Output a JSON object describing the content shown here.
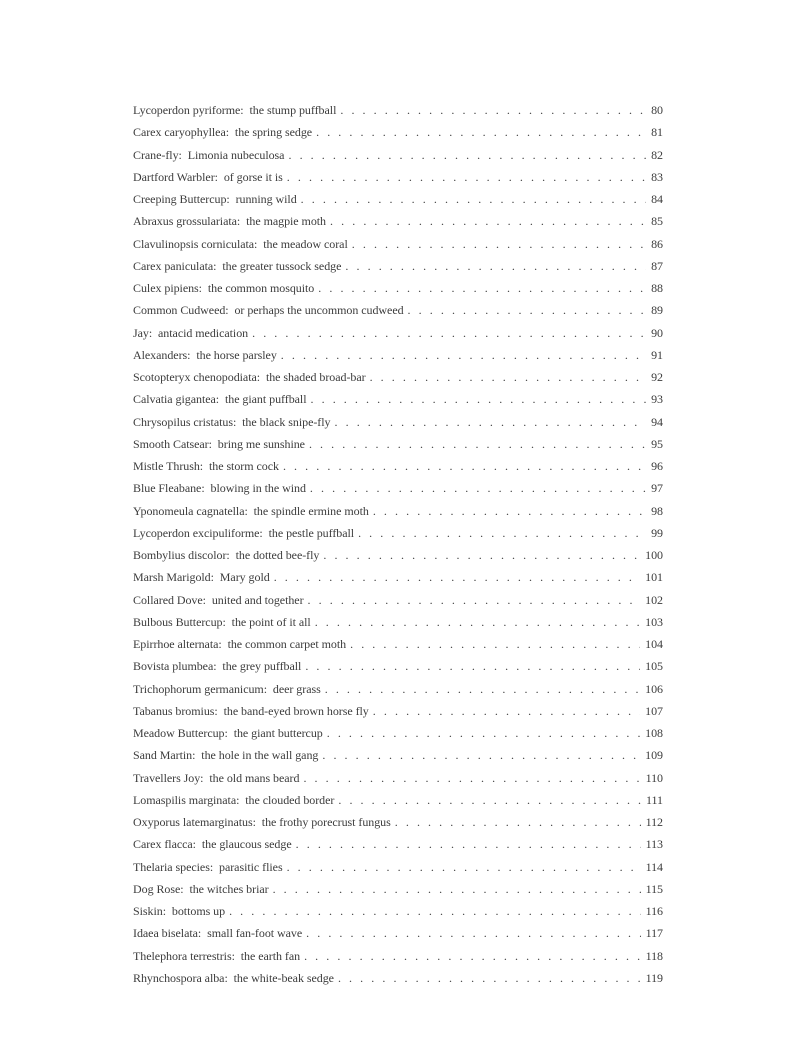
{
  "page": {
    "background": "#ffffff",
    "text_color": "#3c3c3c"
  },
  "toc": {
    "leader_dot": ". ",
    "entries": [
      {
        "label": "Lycoperdon pyriforme:  the stump puffball",
        "page": "80"
      },
      {
        "label": "Carex caryophyllea:  the spring sedge",
        "page": "81"
      },
      {
        "label": "Crane-fly:  Limonia nubeculosa",
        "page": "82"
      },
      {
        "label": "Dartford Warbler:  of gorse it is",
        "page": "83"
      },
      {
        "label": "Creeping Buttercup:  running wild",
        "page": "84"
      },
      {
        "label": "Abraxus grossulariata:  the magpie moth",
        "page": "85"
      },
      {
        "label": "Clavulinopsis corniculata:  the meadow coral",
        "page": "86"
      },
      {
        "label": "Carex paniculata:  the greater tussock sedge",
        "page": "87"
      },
      {
        "label": "Culex pipiens:  the common mosquito",
        "page": "88"
      },
      {
        "label": "Common Cudweed:  or perhaps the uncommon cudweed",
        "page": "89"
      },
      {
        "label": "Jay:  antacid medication",
        "page": "90"
      },
      {
        "label": "Alexanders:  the horse parsley",
        "page": "91"
      },
      {
        "label": "Scotopteryx chenopodiata:  the shaded broad-bar",
        "page": "92"
      },
      {
        "label": "Calvatia gigantea:  the giant puffball",
        "page": "93"
      },
      {
        "label": "Chrysopilus cristatus:  the black snipe-fly",
        "page": "94"
      },
      {
        "label": "Smooth Catsear:  bring me sunshine",
        "page": "95"
      },
      {
        "label": "Mistle Thrush:  the storm cock",
        "page": "96"
      },
      {
        "label": "Blue Fleabane:  blowing in the wind",
        "page": "97"
      },
      {
        "label": "Yponomeula cagnatella:  the spindle ermine moth",
        "page": "98"
      },
      {
        "label": "Lycoperdon excipuliforme:  the pestle puffball",
        "page": "99"
      },
      {
        "label": "Bombylius discolor:  the dotted bee-fly",
        "page": "100"
      },
      {
        "label": "Marsh Marigold:  Mary gold",
        "page": "101"
      },
      {
        "label": "Collared Dove:  united and together",
        "page": "102"
      },
      {
        "label": "Bulbous Buttercup:  the point of it all",
        "page": "103"
      },
      {
        "label": "Epirrhoe alternata:  the common carpet moth",
        "page": "104"
      },
      {
        "label": "Bovista plumbea:  the grey puffball",
        "page": "105"
      },
      {
        "label": "Trichophorum germanicum:  deer grass",
        "page": "106"
      },
      {
        "label": "Tabanus bromius:  the band-eyed brown horse fly",
        "page": "107"
      },
      {
        "label": "Meadow Buttercup:  the giant buttercup",
        "page": "108"
      },
      {
        "label": "Sand Martin:  the hole in the wall gang",
        "page": "109"
      },
      {
        "label": "Travellers Joy:  the old mans beard",
        "page": "110"
      },
      {
        "label": "Lomaspilis marginata:  the clouded border",
        "page": "111"
      },
      {
        "label": "Oxyporus latemarginatus:  the frothy porecrust fungus",
        "page": "112"
      },
      {
        "label": "Carex flacca:  the glaucous sedge",
        "page": "113"
      },
      {
        "label": "Thelaria species:  parasitic flies",
        "page": "114"
      },
      {
        "label": "Dog Rose:  the witches briar",
        "page": "115"
      },
      {
        "label": "Siskin:  bottoms up",
        "page": "116"
      },
      {
        "label": "Idaea biselata:  small fan-foot wave",
        "page": "117"
      },
      {
        "label": "Thelephora terrestris:  the earth fan",
        "page": "118"
      },
      {
        "label": "Rhynchospora alba:  the white-beak sedge",
        "page": "119"
      }
    ]
  }
}
